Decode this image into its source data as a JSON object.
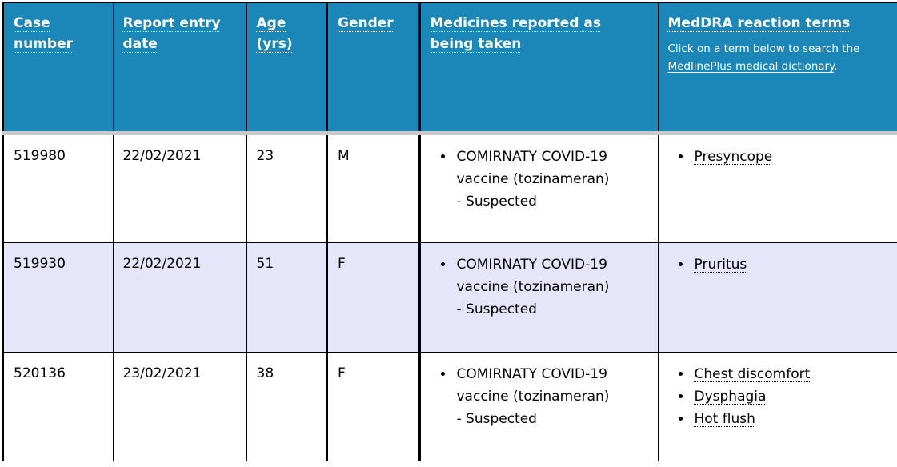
{
  "colors": {
    "header_bg": "#1a87b8",
    "header_text": "#ffffff",
    "alt_row_bg": "#e6e6fa",
    "row_bg": "#ffffff",
    "divider": "#c9c9c9",
    "border": "#000000",
    "body_text": "#000000"
  },
  "table": {
    "columns": [
      {
        "label": "Case number"
      },
      {
        "label": "Report entry date"
      },
      {
        "label": "Age (yrs)"
      },
      {
        "label": "Gender"
      },
      {
        "label": "Medicines reported as being taken"
      },
      {
        "label": "MedDRA reaction terms",
        "note_prefix": "Click on a term below to search the ",
        "note_link": "MedlinePlus medical dictionary",
        "note_suffix": "."
      }
    ],
    "rows": [
      {
        "case_number": "519980",
        "report_entry_date": "22/02/2021",
        "age": "23",
        "gender": "M",
        "medicines": [
          "COMIRNATY COVID-19 vaccine (tozinameran) - Suspected"
        ],
        "reactions": [
          "Presyncope"
        ]
      },
      {
        "case_number": "519930",
        "report_entry_date": "22/02/2021",
        "age": "51",
        "gender": "F",
        "medicines": [
          "COMIRNATY COVID-19 vaccine (tozinameran) - Suspected"
        ],
        "reactions": [
          "Pruritus"
        ]
      },
      {
        "case_number": "520136",
        "report_entry_date": "23/02/2021",
        "age": "38",
        "gender": "F",
        "medicines": [
          "COMIRNATY COVID-19 vaccine (tozinameran) - Suspected"
        ],
        "reactions": [
          "Chest discomfort",
          "Dysphagia",
          "Hot flush"
        ]
      }
    ]
  }
}
